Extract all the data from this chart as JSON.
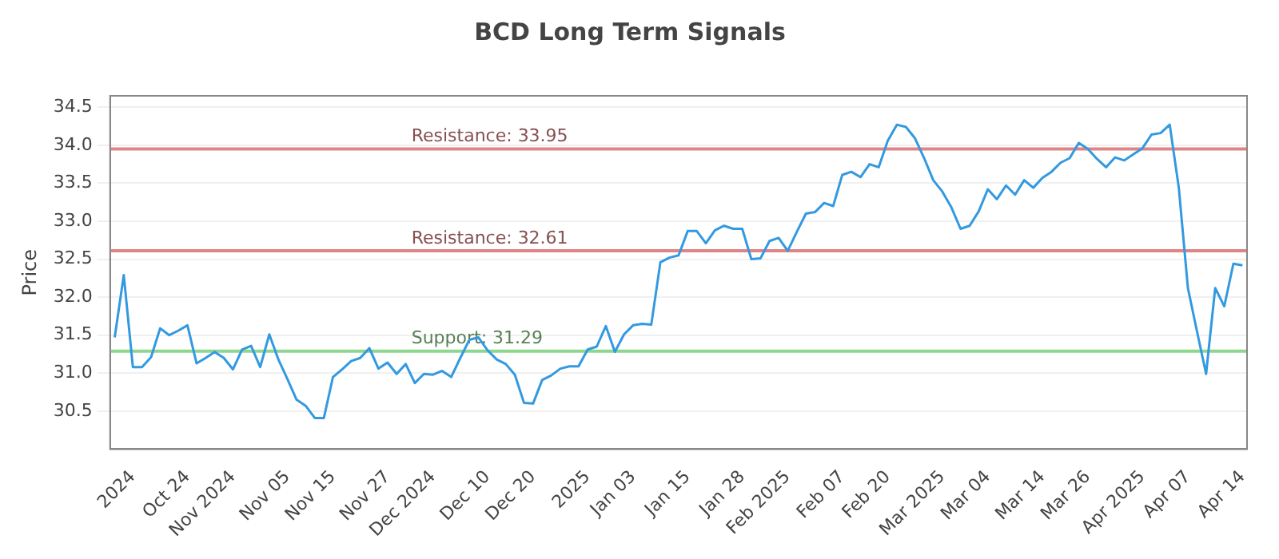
{
  "chart_data": {
    "type": "line",
    "title": "BCD Long Term Signals",
    "ylabel": "Price",
    "categories": [
      null,
      null,
      "2024",
      null,
      null,
      null,
      null,
      null,
      "Oct 24",
      null,
      null,
      null,
      null,
      "Nov 2024",
      null,
      null,
      null,
      null,
      null,
      "Nov 05",
      null,
      null,
      null,
      null,
      "Nov 15",
      null,
      null,
      null,
      null,
      null,
      "Nov 27",
      null,
      null,
      null,
      null,
      "Dec 2024",
      null,
      null,
      null,
      null,
      null,
      "Dec 10",
      null,
      null,
      null,
      null,
      "Dec 20",
      null,
      null,
      null,
      null,
      null,
      "2025",
      null,
      null,
      null,
      null,
      "Jan 03",
      null,
      null,
      null,
      null,
      null,
      "Jan 15",
      null,
      null,
      null,
      null,
      null,
      "Jan 28",
      null,
      null,
      null,
      null,
      "Feb 2025",
      null,
      null,
      null,
      null,
      null,
      "Feb 07",
      null,
      null,
      null,
      null,
      "Feb 20",
      null,
      null,
      null,
      null,
      null,
      "Mar 2025",
      null,
      null,
      null,
      null,
      "Mar 04",
      null,
      null,
      null,
      null,
      null,
      "Mar 14",
      null,
      null,
      null,
      null,
      "Mar 26",
      null,
      null,
      null,
      null,
      null,
      "Apr 2025",
      null,
      null,
      null,
      null,
      "Apr 07",
      null,
      null,
      null,
      null,
      null,
      "Apr 14"
    ],
    "series": [
      {
        "color": "#3399e0",
        "values": [
          31.47,
          32.29,
          31.08,
          31.08,
          31.21,
          31.59,
          31.5,
          31.56,
          31.63,
          31.13,
          31.2,
          31.28,
          31.2,
          31.05,
          31.31,
          31.36,
          31.08,
          31.51,
          31.18,
          30.92,
          30.65,
          30.57,
          30.41,
          30.41,
          30.95,
          31.05,
          31.16,
          31.2,
          31.33,
          31.06,
          31.14,
          30.99,
          31.12,
          30.87,
          30.99,
          30.98,
          31.03,
          30.95,
          31.2,
          31.44,
          31.47,
          31.3,
          31.18,
          31.12,
          30.98,
          30.61,
          30.6,
          30.91,
          30.97,
          31.06,
          31.09,
          31.09,
          31.31,
          31.35,
          31.62,
          31.28,
          31.51,
          31.63,
          31.65,
          31.64,
          32.46,
          32.52,
          32.55,
          32.87,
          32.87,
          32.71,
          32.88,
          32.94,
          32.9,
          32.9,
          32.5,
          32.51,
          32.74,
          32.78,
          32.61,
          32.86,
          33.1,
          33.12,
          33.24,
          33.2,
          33.61,
          33.65,
          33.58,
          33.75,
          33.71,
          34.06,
          34.27,
          34.24,
          34.09,
          33.83,
          33.54,
          33.39,
          33.18,
          32.9,
          32.94,
          33.13,
          33.42,
          33.29,
          33.47,
          33.35,
          33.54,
          33.44,
          33.57,
          33.65,
          33.77,
          33.83,
          34.03,
          33.95,
          33.82,
          33.71,
          33.84,
          33.8,
          33.88,
          33.96,
          34.14,
          34.16,
          34.27,
          33.44,
          32.12,
          31.55,
          30.99,
          32.12,
          31.88,
          32.44,
          32.42
        ]
      }
    ],
    "ylim": [
      30.0,
      34.65
    ],
    "yticks": [
      30.5,
      {
        "value": 31,
        "label": "31.0"
      },
      31.5,
      {
        "value": 32,
        "label": "32.0"
      },
      32.5,
      {
        "value": 33,
        "label": "33.0"
      },
      33.5,
      {
        "value": 34,
        "label": "34.0"
      },
      34.5
    ],
    "ref_lines": [
      {
        "axis": "y",
        "value": 33.95,
        "label": "Resistance: 33.95",
        "color": "#e08585"
      },
      {
        "axis": "y",
        "value": 32.61,
        "label": "Resistance: 32.61",
        "color": "#e08585"
      },
      {
        "axis": "y",
        "value": 31.29,
        "label": "Support: 31.29",
        "color": "#8fd68f"
      }
    ],
    "grid": "y",
    "legend": false,
    "marker": "none",
    "line_style": "solid"
  }
}
